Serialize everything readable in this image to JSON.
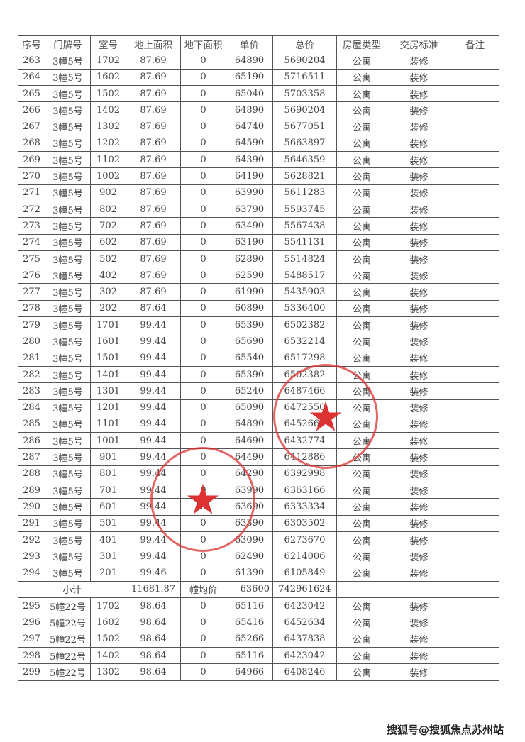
{
  "headers": [
    "序号",
    "门牌号",
    "室号",
    "地上面积",
    "地下面积",
    "单价",
    "总价",
    "房屋类型",
    "交房标准",
    "备注"
  ],
  "rows": [
    [
      "263",
      "3幢5号",
      "1702",
      "87.69",
      "0",
      "64890",
      "5690204",
      "公寓",
      "装修",
      ""
    ],
    [
      "264",
      "3幢5号",
      "1602",
      "87.69",
      "0",
      "65190",
      "5716511",
      "公寓",
      "装修",
      ""
    ],
    [
      "265",
      "3幢5号",
      "1502",
      "87.69",
      "0",
      "65040",
      "5703358",
      "公寓",
      "装修",
      ""
    ],
    [
      "266",
      "3幢5号",
      "1402",
      "87.69",
      "0",
      "64890",
      "5690204",
      "公寓",
      "装修",
      ""
    ],
    [
      "267",
      "3幢5号",
      "1302",
      "87.69",
      "0",
      "64740",
      "5677051",
      "公寓",
      "装修",
      ""
    ],
    [
      "268",
      "3幢5号",
      "1202",
      "87.69",
      "0",
      "64590",
      "5663897",
      "公寓",
      "装修",
      ""
    ],
    [
      "269",
      "3幢5号",
      "1102",
      "87.69",
      "0",
      "64390",
      "5646359",
      "公寓",
      "装修",
      ""
    ],
    [
      "270",
      "3幢5号",
      "1002",
      "87.69",
      "0",
      "64190",
      "5628821",
      "公寓",
      "装修",
      ""
    ],
    [
      "271",
      "3幢5号",
      "902",
      "87.69",
      "0",
      "63990",
      "5611283",
      "公寓",
      "装修",
      ""
    ],
    [
      "272",
      "3幢5号",
      "802",
      "87.69",
      "0",
      "63790",
      "5593745",
      "公寓",
      "装修",
      ""
    ],
    [
      "273",
      "3幢5号",
      "702",
      "87.69",
      "0",
      "63490",
      "5567438",
      "公寓",
      "装修",
      ""
    ],
    [
      "274",
      "3幢5号",
      "602",
      "87.69",
      "0",
      "63190",
      "5541131",
      "公寓",
      "装修",
      ""
    ],
    [
      "275",
      "3幢5号",
      "502",
      "87.69",
      "0",
      "62890",
      "5514824",
      "公寓",
      "装修",
      ""
    ],
    [
      "276",
      "3幢5号",
      "402",
      "87.69",
      "0",
      "62590",
      "5488517",
      "公寓",
      "装修",
      ""
    ],
    [
      "277",
      "3幢5号",
      "302",
      "87.69",
      "0",
      "61990",
      "5435903",
      "公寓",
      "装修",
      ""
    ],
    [
      "278",
      "3幢5号",
      "202",
      "87.64",
      "0",
      "60890",
      "5336400",
      "公寓",
      "装修",
      ""
    ],
    [
      "279",
      "3幢5号",
      "1701",
      "99.44",
      "0",
      "65390",
      "6502382",
      "公寓",
      "装修",
      ""
    ],
    [
      "280",
      "3幢5号",
      "1601",
      "99.44",
      "0",
      "65690",
      "6532214",
      "公寓",
      "装修",
      ""
    ],
    [
      "281",
      "3幢5号",
      "1501",
      "99.44",
      "0",
      "65540",
      "6517298",
      "公寓",
      "装修",
      ""
    ],
    [
      "282",
      "3幢5号",
      "1401",
      "99.44",
      "0",
      "65390",
      "6502382",
      "公寓",
      "装修",
      ""
    ],
    [
      "283",
      "3幢5号",
      "1301",
      "99.44",
      "0",
      "65240",
      "6487466",
      "公寓",
      "装修",
      ""
    ],
    [
      "284",
      "3幢5号",
      "1201",
      "99.44",
      "0",
      "65090",
      "6472550",
      "公寓",
      "装修",
      ""
    ],
    [
      "285",
      "3幢5号",
      "1101",
      "99.44",
      "0",
      "64890",
      "6452662",
      "公寓",
      "装修",
      ""
    ],
    [
      "286",
      "3幢5号",
      "1001",
      "99.44",
      "0",
      "64690",
      "6432774",
      "公寓",
      "装修",
      ""
    ],
    [
      "287",
      "3幢5号",
      "901",
      "99.44",
      "0",
      "64490",
      "6412886",
      "公寓",
      "装修",
      ""
    ],
    [
      "288",
      "3幢5号",
      "801",
      "99.44",
      "0",
      "64290",
      "6392998",
      "公寓",
      "装修",
      ""
    ],
    [
      "289",
      "3幢5号",
      "701",
      "99.44",
      "0",
      "63990",
      "6363166",
      "公寓",
      "装修",
      ""
    ],
    [
      "290",
      "3幢5号",
      "601",
      "99.44",
      "0",
      "63690",
      "6333334",
      "公寓",
      "装修",
      ""
    ],
    [
      "291",
      "3幢5号",
      "501",
      "99.44",
      "0",
      "63390",
      "6303502",
      "公寓",
      "装修",
      ""
    ],
    [
      "292",
      "3幢5号",
      "401",
      "99.44",
      "0",
      "63090",
      "6273670",
      "公寓",
      "装修",
      ""
    ],
    [
      "293",
      "3幢5号",
      "301",
      "99.44",
      "0",
      "62490",
      "6214006",
      "公寓",
      "装修",
      ""
    ],
    [
      "294",
      "3幢5号",
      "201",
      "99.46",
      "0",
      "61390",
      "6105849",
      "公寓",
      "装修",
      ""
    ]
  ],
  "subtotal": {
    "label": "小计",
    "area": "11681.87",
    "avg_label": "幢均价",
    "avg_price": "63600",
    "total": "742961624"
  },
  "rows2": [
    [
      "295",
      "5幢22号",
      "1702",
      "98.64",
      "0",
      "65116",
      "6423042",
      "公寓",
      "装修",
      ""
    ],
    [
      "296",
      "5幢22号",
      "1602",
      "98.64",
      "0",
      "65416",
      "6452634",
      "公寓",
      "装修",
      ""
    ],
    [
      "297",
      "5幢22号",
      "1502",
      "98.64",
      "0",
      "65266",
      "6437838",
      "公寓",
      "装修",
      ""
    ],
    [
      "298",
      "5幢22号",
      "1402",
      "98.64",
      "0",
      "65116",
      "6423042",
      "公寓",
      "装修",
      ""
    ],
    [
      "299",
      "5幢22号",
      "1302",
      "98.64",
      "0",
      "64966",
      "6408246",
      "公寓",
      "装修",
      ""
    ]
  ],
  "watermark": "搜狐号@搜狐焦点苏州站",
  "stamp_color": "#dc3232"
}
